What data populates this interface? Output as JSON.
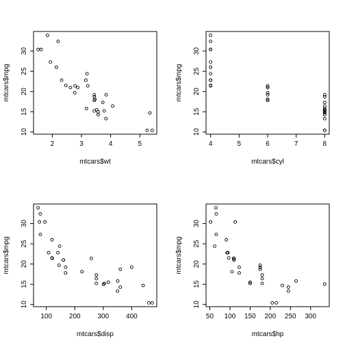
{
  "chart_data": [
    {
      "type": "scatter",
      "title": "",
      "xlabel": "mtcars$wt",
      "ylabel": "mtcars$mpg",
      "xlim": [
        1.513,
        5.424
      ],
      "ylim": [
        10.4,
        33.9
      ],
      "x_ticks": [
        2,
        3,
        4,
        5
      ],
      "y_ticks": [
        10,
        15,
        20,
        25,
        30
      ],
      "grid": false,
      "legend": "none",
      "x": [
        2.62,
        2.875,
        2.32,
        3.215,
        3.44,
        3.46,
        3.57,
        3.19,
        3.15,
        3.44,
        3.44,
        4.07,
        3.73,
        3.78,
        5.25,
        5.424,
        5.345,
        2.2,
        1.615,
        1.835,
        2.465,
        3.52,
        3.435,
        3.84,
        3.845,
        1.935,
        2.14,
        1.513,
        3.17,
        2.77,
        3.57,
        2.78
      ],
      "y": [
        21.0,
        21.0,
        22.8,
        21.4,
        18.7,
        18.1,
        14.3,
        24.4,
        22.8,
        19.2,
        17.8,
        16.4,
        17.3,
        15.2,
        10.4,
        10.4,
        14.7,
        32.4,
        30.4,
        33.9,
        21.5,
        15.5,
        15.2,
        13.3,
        19.2,
        27.3,
        26.0,
        30.4,
        15.8,
        19.7,
        15.0,
        21.4
      ]
    },
    {
      "type": "scatter",
      "title": "",
      "xlabel": "mtcars$cyl",
      "ylabel": "mtcars$mpg",
      "xlim": [
        4,
        8
      ],
      "ylim": [
        10.4,
        33.9
      ],
      "x_ticks": [
        4,
        5,
        6,
        7,
        8
      ],
      "y_ticks": [
        10,
        15,
        20,
        25,
        30
      ],
      "grid": false,
      "legend": "none",
      "x": [
        6,
        6,
        4,
        6,
        8,
        6,
        8,
        4,
        4,
        6,
        6,
        8,
        8,
        8,
        8,
        8,
        8,
        4,
        4,
        4,
        4,
        8,
        8,
        8,
        8,
        4,
        4,
        4,
        8,
        6,
        8,
        4
      ],
      "y": [
        21.0,
        21.0,
        22.8,
        21.4,
        18.7,
        18.1,
        14.3,
        24.4,
        22.8,
        19.2,
        17.8,
        16.4,
        17.3,
        15.2,
        10.4,
        10.4,
        14.7,
        32.4,
        30.4,
        33.9,
        21.5,
        15.5,
        15.2,
        13.3,
        19.2,
        27.3,
        26.0,
        30.4,
        15.8,
        19.7,
        15.0,
        21.4
      ]
    },
    {
      "type": "scatter",
      "title": "",
      "xlabel": "mtcars$disp",
      "ylabel": "mtcars$mpg",
      "xlim": [
        71.1,
        472
      ],
      "ylim": [
        10.4,
        33.9
      ],
      "x_ticks": [
        100,
        200,
        300,
        400
      ],
      "y_ticks": [
        10,
        15,
        20,
        25,
        30
      ],
      "grid": false,
      "legend": "none",
      "x": [
        160,
        160,
        108,
        258,
        360,
        225,
        360,
        146.7,
        140.8,
        167.6,
        167.6,
        275.8,
        275.8,
        275.8,
        472,
        460,
        440,
        78.7,
        75.7,
        71.1,
        120.1,
        318,
        304,
        350,
        400,
        79,
        120.3,
        95.1,
        351,
        145,
        301,
        121
      ],
      "y": [
        21.0,
        21.0,
        22.8,
        21.4,
        18.7,
        18.1,
        14.3,
        24.4,
        22.8,
        19.2,
        17.8,
        16.4,
        17.3,
        15.2,
        10.4,
        10.4,
        14.7,
        32.4,
        30.4,
        33.9,
        21.5,
        15.5,
        15.2,
        13.3,
        19.2,
        27.3,
        26.0,
        30.4,
        15.8,
        19.7,
        15.0,
        21.4
      ]
    },
    {
      "type": "scatter",
      "title": "",
      "xlabel": "mtcars$hp",
      "ylabel": "mtcars$mpg",
      "xlim": [
        52,
        335
      ],
      "ylim": [
        10.4,
        33.9
      ],
      "x_ticks": [
        50,
        100,
        150,
        200,
        250,
        300
      ],
      "y_ticks": [
        10,
        15,
        20,
        25,
        30
      ],
      "grid": false,
      "legend": "none",
      "x": [
        110,
        110,
        93,
        110,
        175,
        105,
        245,
        62,
        95,
        123,
        123,
        180,
        180,
        180,
        205,
        215,
        230,
        66,
        52,
        65,
        97,
        150,
        150,
        245,
        175,
        66,
        91,
        113,
        264,
        175,
        335,
        109
      ],
      "y": [
        21.0,
        21.0,
        22.8,
        21.4,
        18.7,
        18.1,
        14.3,
        24.4,
        22.8,
        19.2,
        17.8,
        16.4,
        17.3,
        15.2,
        10.4,
        10.4,
        14.7,
        32.4,
        30.4,
        33.9,
        21.5,
        15.5,
        15.2,
        13.3,
        19.2,
        27.3,
        26.0,
        30.4,
        15.8,
        19.7,
        15.0,
        21.4
      ]
    }
  ]
}
